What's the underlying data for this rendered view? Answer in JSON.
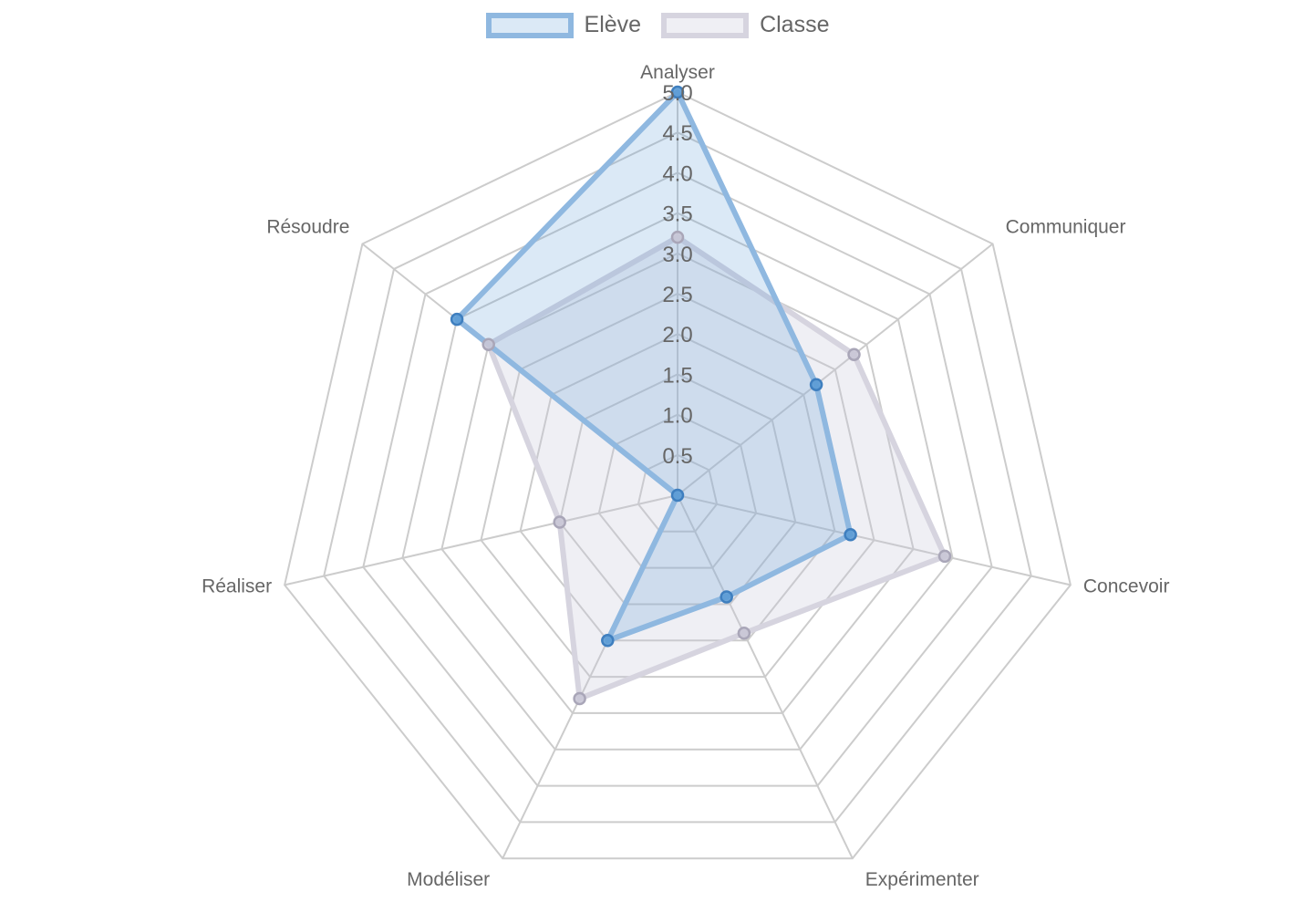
{
  "chart_data": {
    "type": "radar",
    "categories": [
      "Analyser",
      "Communiquer",
      "Concevoir",
      "Expérimenter",
      "Modéliser",
      "Réaliser",
      "Résoudre"
    ],
    "series": [
      {
        "name": "Elève",
        "values": [
          5.0,
          2.2,
          2.2,
          1.4,
          2.0,
          0.0,
          3.5
        ],
        "color": "#5b9bd5",
        "fill": "rgba(91,155,213,0.22)"
      },
      {
        "name": "Classe",
        "values": [
          3.2,
          2.8,
          3.4,
          1.9,
          2.8,
          1.5,
          3.0
        ],
        "color": "#c9c7d6",
        "fill": "rgba(199,196,216,0.28)"
      }
    ],
    "rlim": [
      0,
      5
    ],
    "ticks": [
      "0.5",
      "1.0",
      "1.5",
      "2.0",
      "2.5",
      "3.0",
      "3.5",
      "4.0",
      "4.5",
      "5.0"
    ],
    "legend": "top",
    "grid": true
  }
}
